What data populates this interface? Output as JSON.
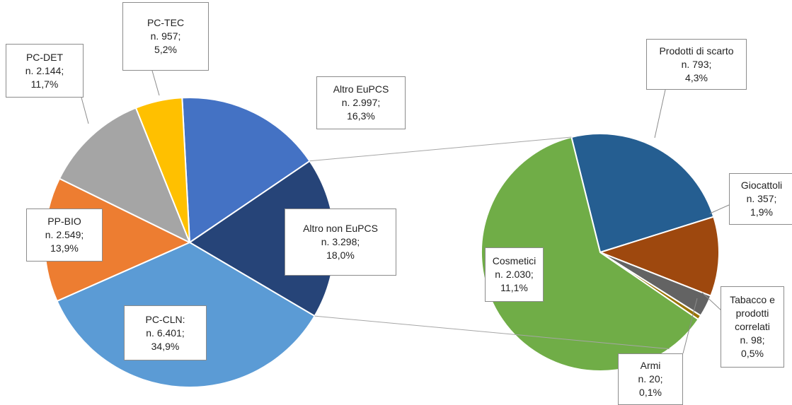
{
  "chart_data": {
    "type": "pie-of-pie",
    "pies": [
      {
        "categories": [
          "Altro EuPCS",
          "Altro non EuPCS",
          "PC-CLN:",
          "PP-BIO",
          "PC-DET",
          "PC-TEC"
        ],
        "values": [
          2997,
          3298,
          6401,
          2549,
          2144,
          957
        ],
        "value_labels": [
          "n. 2.997;",
          "n. 3.298;",
          "n. 6.401;",
          "n. 2.549;",
          "n. 2.144;",
          "n. 957;"
        ],
        "percents": [
          16.3,
          18.0,
          34.9,
          13.9,
          11.7,
          5.2
        ],
        "percent_labels": [
          "16,3%",
          "18,0%",
          "34,9%",
          "13,9%",
          "11,7%",
          "5,2%"
        ],
        "colors": [
          "#4472c4",
          "#264478",
          "#5b9bd5",
          "#ed7d31",
          "#a5a5a5",
          "#ffc000"
        ]
      },
      {
        "categories": [
          "Prodotti di scarto",
          "Giocattoli",
          "Tabacco e prodotti correlati",
          "Armi",
          "Cosmetici"
        ],
        "values": [
          793,
          357,
          98,
          20,
          2030
        ],
        "value_labels": [
          "n. 793;",
          "n. 357;",
          "n. 98;",
          "n. 20;",
          "n. 2.030;"
        ],
        "percents": [
          4.3,
          1.9,
          0.5,
          0.1,
          11.1
        ],
        "percent_labels": [
          "4,3%",
          "1,9%",
          "0,5%",
          "0,1%",
          "11,1%"
        ],
        "colors": [
          "#255e91",
          "#9e480e",
          "#636363",
          "#997300",
          "#70ad47"
        ]
      }
    ]
  }
}
